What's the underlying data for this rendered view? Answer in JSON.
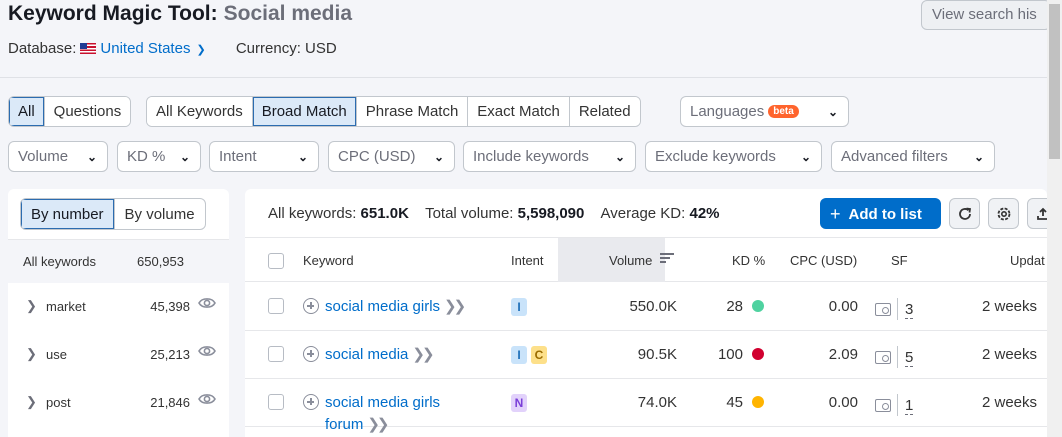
{
  "header": {
    "title": "Keyword Magic Tool:",
    "query": "Social media",
    "database_label": "Database:",
    "database_value": "United States",
    "currency": "Currency: USD",
    "history_button": "View search his"
  },
  "match_tabs": [
    {
      "label": "All",
      "active": true
    },
    {
      "label": "Questions",
      "active": false
    }
  ],
  "keyword_tabs": [
    {
      "label": "All Keywords",
      "active": false
    },
    {
      "label": "Broad Match",
      "active": true
    },
    {
      "label": "Phrase Match",
      "active": false
    },
    {
      "label": "Exact Match",
      "active": false
    },
    {
      "label": "Related",
      "active": false
    }
  ],
  "languages": {
    "label": "Languages",
    "badge": "beta"
  },
  "filters": [
    "Volume",
    "KD %",
    "Intent",
    "CPC (USD)",
    "Include keywords",
    "Exclude keywords",
    "Advanced filters"
  ],
  "groups_panel": {
    "toggle": [
      "By number",
      "By volume"
    ],
    "header_label": "All keywords",
    "header_count": "650,953",
    "items": [
      {
        "name": "market",
        "count": "45,398"
      },
      {
        "name": "use",
        "count": "25,213"
      },
      {
        "name": "post",
        "count": "21,846"
      }
    ]
  },
  "summary": {
    "all_keywords_label": "All keywords:",
    "all_keywords_value": "651.0K",
    "total_volume_label": "Total volume:",
    "total_volume_value": "5,598,090",
    "avg_kd_label": "Average KD:",
    "avg_kd_value": "42%"
  },
  "add_to_list": "Add to list",
  "columns": {
    "keyword": "Keyword",
    "intent": "Intent",
    "volume": "Volume",
    "kd": "KD %",
    "cpc": "CPC (USD)",
    "sf": "SF",
    "updated": "Updat"
  },
  "rows": [
    {
      "keyword": "social media girls",
      "keyword_line2": "",
      "intents": [
        {
          "code": "I",
          "bg": "#c9e3fa",
          "fg": "#1e6fb9"
        }
      ],
      "volume": "550.0K",
      "kd": "28",
      "kd_color": "#4fd2a0",
      "cpc": "0.00",
      "sf": "3",
      "updated": "2 weeks"
    },
    {
      "keyword": "social media",
      "keyword_line2": "",
      "intents": [
        {
          "code": "I",
          "bg": "#c9e3fa",
          "fg": "#1e6fb9"
        },
        {
          "code": "C",
          "bg": "#fde08a",
          "fg": "#9a6b00"
        }
      ],
      "volume": "90.5K",
      "kd": "100",
      "kd_color": "#d1002f",
      "cpc": "2.09",
      "sf": "5",
      "updated": "2 weeks"
    },
    {
      "keyword": "social media girls",
      "keyword_line2": "forum",
      "intents": [
        {
          "code": "N",
          "bg": "#e2d2fb",
          "fg": "#7a3fd8"
        }
      ],
      "volume": "74.0K",
      "kd": "45",
      "kd_color": "#ffb400",
      "cpc": "0.00",
      "sf": "1",
      "updated": "2 weeks"
    }
  ]
}
